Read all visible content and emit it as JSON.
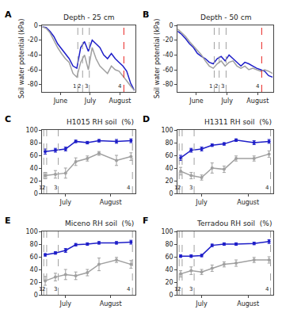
{
  "chart_data": [
    {
      "type": "line",
      "panel": "A",
      "title": "Depth - 25 cm",
      "y_label": "Soil water potential (kPa)",
      "x": [
        -5,
        -1,
        3,
        7,
        11,
        15,
        19,
        23,
        27,
        31,
        35,
        39,
        43,
        47,
        51,
        55,
        59,
        63,
        67,
        71,
        75,
        79,
        83,
        87,
        91
      ],
      "series": [
        {
          "color": "#1e1ec8",
          "values": [
            -2,
            -3,
            -8,
            -15,
            -25,
            -32,
            -38,
            -45,
            -55,
            -58,
            -30,
            -22,
            -35,
            -20,
            -25,
            -30,
            -40,
            -45,
            -38,
            -45,
            -50,
            -55,
            -62,
            -78,
            -88
          ]
        },
        {
          "color": "#a0a0a0",
          "values": [
            -2,
            -4,
            -10,
            -20,
            -30,
            -38,
            -45,
            -50,
            -65,
            -70,
            -50,
            -40,
            -60,
            -30,
            -45,
            -55,
            -60,
            -65,
            -55,
            -60,
            -62,
            -68,
            -75,
            -82,
            -88
          ]
        }
      ],
      "xlim": [
        -5,
        92
      ],
      "xticks": [
        {
          "value": 14,
          "label": "June"
        },
        {
          "value": 45,
          "label": "July"
        },
        {
          "value": 76,
          "label": "August"
        }
      ],
      "ylim": [
        -90,
        0
      ],
      "yticks": [
        0,
        -20,
        -40,
        -60,
        -80
      ],
      "grid": false,
      "events": [
        {
          "x": 32,
          "label": "1",
          "color": "#a0a0a0"
        },
        {
          "x": 37,
          "label": "2",
          "color": "#a0a0a0"
        },
        {
          "x": 44,
          "label": "3",
          "color": "#a0a0a0"
        },
        {
          "x": 80,
          "label": "4",
          "color": "#e8201e"
        }
      ]
    },
    {
      "type": "line",
      "panel": "B",
      "title": "Depth - 50 cm",
      "y_label": "Soil water potential (kPa)",
      "x": [
        -5,
        -1,
        3,
        7,
        11,
        15,
        19,
        23,
        27,
        31,
        35,
        39,
        43,
        47,
        51,
        55,
        59,
        63,
        67,
        71,
        75,
        79,
        83,
        87,
        91
      ],
      "series": [
        {
          "color": "#1e1ec8",
          "values": [
            -8,
            -12,
            -18,
            -25,
            -30,
            -38,
            -42,
            -45,
            -50,
            -52,
            -45,
            -42,
            -48,
            -40,
            -45,
            -50,
            -55,
            -50,
            -52,
            -55,
            -58,
            -60,
            -62,
            -68,
            -70
          ]
        },
        {
          "color": "#a0a0a0",
          "values": [
            -5,
            -10,
            -15,
            -22,
            -28,
            -35,
            -40,
            -48,
            -55,
            -58,
            -52,
            -48,
            -55,
            -50,
            -48,
            -55,
            -58,
            -55,
            -60,
            -58,
            -60,
            -62,
            -60,
            -62,
            -65
          ]
        }
      ],
      "xlim": [
        -5,
        92
      ],
      "xticks": [
        {
          "value": 14,
          "label": "June"
        },
        {
          "value": 45,
          "label": "July"
        },
        {
          "value": 76,
          "label": "August"
        }
      ],
      "ylim": [
        -90,
        0
      ],
      "yticks": [
        0,
        -20,
        -40,
        -60,
        -80
      ],
      "grid": false,
      "events": [
        {
          "x": 32,
          "label": "1",
          "color": "#a0a0a0"
        },
        {
          "x": 37,
          "label": "2",
          "color": "#a0a0a0"
        },
        {
          "x": 44,
          "label": "3",
          "color": "#a0a0a0"
        },
        {
          "x": 80,
          "label": "4",
          "color": "#e8201e"
        }
      ]
    },
    {
      "type": "line",
      "panel": "C",
      "title": "H1015 RH soil  (%)",
      "x": [
        31,
        38,
        45,
        52,
        60,
        68,
        80,
        90
      ],
      "series": [
        {
          "color": "#1e1ec8",
          "marker": "circle",
          "values": [
            66,
            68,
            70,
            82,
            80,
            83,
            82,
            83
          ],
          "error": [
            4,
            3,
            3,
            2,
            2,
            2,
            3,
            3
          ]
        },
        {
          "color": "#a0a0a0",
          "marker": "circle",
          "values": [
            28,
            30,
            32,
            50,
            55,
            63,
            52,
            58
          ],
          "error": [
            5,
            6,
            8,
            6,
            4,
            3,
            8,
            6
          ]
        }
      ],
      "xlim": [
        29,
        93
      ],
      "xticks": [
        {
          "value": 45,
          "label": "July"
        },
        {
          "value": 76,
          "label": "August"
        }
      ],
      "ylim": [
        0,
        100
      ],
      "yticks": [
        0,
        20,
        40,
        60,
        80,
        100
      ],
      "grid": false,
      "events": [
        {
          "x": 30,
          "label": "1",
          "color": "#a0a0a0"
        },
        {
          "x": 32,
          "label": "2",
          "color": "#a0a0a0"
        },
        {
          "x": 40,
          "label": "3",
          "color": "#a0a0a0"
        },
        {
          "x": 91,
          "label": "4",
          "color": "#a0a0a0"
        }
      ]
    },
    {
      "type": "line",
      "panel": "D",
      "title": "H1311 RH soil  (%)",
      "x": [
        31,
        38,
        45,
        52,
        60,
        68,
        80,
        90
      ],
      "series": [
        {
          "color": "#1e1ec8",
          "marker": "circle",
          "values": [
            56,
            68,
            70,
            76,
            78,
            84,
            80,
            82
          ],
          "error": [
            4,
            3,
            3,
            2,
            2,
            2,
            3,
            3
          ]
        },
        {
          "color": "#a0a0a0",
          "marker": "circle",
          "values": [
            35,
            28,
            25,
            40,
            38,
            55,
            55,
            62
          ],
          "error": [
            6,
            5,
            4,
            8,
            5,
            4,
            4,
            5
          ]
        }
      ],
      "xlim": [
        29,
        93
      ],
      "xticks": [
        {
          "value": 45,
          "label": "July"
        },
        {
          "value": 76,
          "label": "August"
        }
      ],
      "ylim": [
        0,
        100
      ],
      "yticks": [
        0,
        20,
        40,
        60,
        80,
        100
      ],
      "grid": false,
      "events": [
        {
          "x": 30,
          "label": "1",
          "color": "#a0a0a0"
        },
        {
          "x": 32,
          "label": "2",
          "color": "#a0a0a0"
        },
        {
          "x": 40,
          "label": "3",
          "color": "#a0a0a0"
        },
        {
          "x": 91,
          "label": "4",
          "color": "#a0a0a0"
        }
      ]
    },
    {
      "type": "line",
      "panel": "E",
      "title": "Miceno RH soil  (%)",
      "x": [
        31,
        38,
        45,
        52,
        60,
        68,
        80,
        90
      ],
      "series": [
        {
          "color": "#1e1ec8",
          "marker": "circle",
          "values": [
            63,
            66,
            70,
            79,
            80,
            82,
            82,
            83
          ],
          "error": [
            2,
            2,
            3,
            2,
            2,
            2,
            2,
            3
          ]
        },
        {
          "color": "#a0a0a0",
          "marker": "circle",
          "values": [
            22,
            28,
            32,
            30,
            35,
            48,
            55,
            48
          ],
          "error": [
            7,
            6,
            8,
            6,
            5,
            10,
            4,
            6
          ]
        }
      ],
      "xlim": [
        29,
        93
      ],
      "xticks": [
        {
          "value": 45,
          "label": "July"
        },
        {
          "value": 76,
          "label": "August"
        }
      ],
      "ylim": [
        0,
        100
      ],
      "yticks": [
        0,
        20,
        40,
        60,
        80,
        100
      ],
      "grid": false,
      "events": [
        {
          "x": 30,
          "label": "1",
          "color": "#a0a0a0"
        },
        {
          "x": 32,
          "label": "2",
          "color": "#a0a0a0"
        },
        {
          "x": 40,
          "label": "3",
          "color": "#a0a0a0"
        },
        {
          "x": 91,
          "label": "4",
          "color": "#a0a0a0"
        }
      ]
    },
    {
      "type": "line",
      "panel": "F",
      "title": "Terradou RH soil  (%)",
      "x": [
        31,
        38,
        45,
        52,
        60,
        68,
        80,
        90
      ],
      "series": [
        {
          "color": "#1e1ec8",
          "marker": "circle",
          "values": [
            61,
            61,
            62,
            78,
            80,
            80,
            81,
            84
          ],
          "error": [
            2,
            2,
            2,
            2,
            2,
            2,
            2,
            3
          ]
        },
        {
          "color": "#a0a0a0",
          "marker": "circle",
          "values": [
            33,
            38,
            36,
            42,
            48,
            50,
            55,
            55
          ],
          "error": [
            5,
            6,
            4,
            5,
            4,
            5,
            4,
            5
          ]
        }
      ],
      "xlim": [
        29,
        93
      ],
      "xticks": [
        {
          "value": 45,
          "label": "July"
        },
        {
          "value": 76,
          "label": "August"
        }
      ],
      "ylim": [
        0,
        100
      ],
      "yticks": [
        0,
        20,
        40,
        60,
        80,
        100
      ],
      "grid": false,
      "events": [
        {
          "x": 30,
          "label": "1",
          "color": "#a0a0a0"
        },
        {
          "x": 32,
          "label": "2",
          "color": "#a0a0a0"
        },
        {
          "x": 40,
          "label": "3",
          "color": "#a0a0a0"
        },
        {
          "x": 91,
          "label": "4",
          "color": "#a0a0a0"
        }
      ]
    }
  ]
}
